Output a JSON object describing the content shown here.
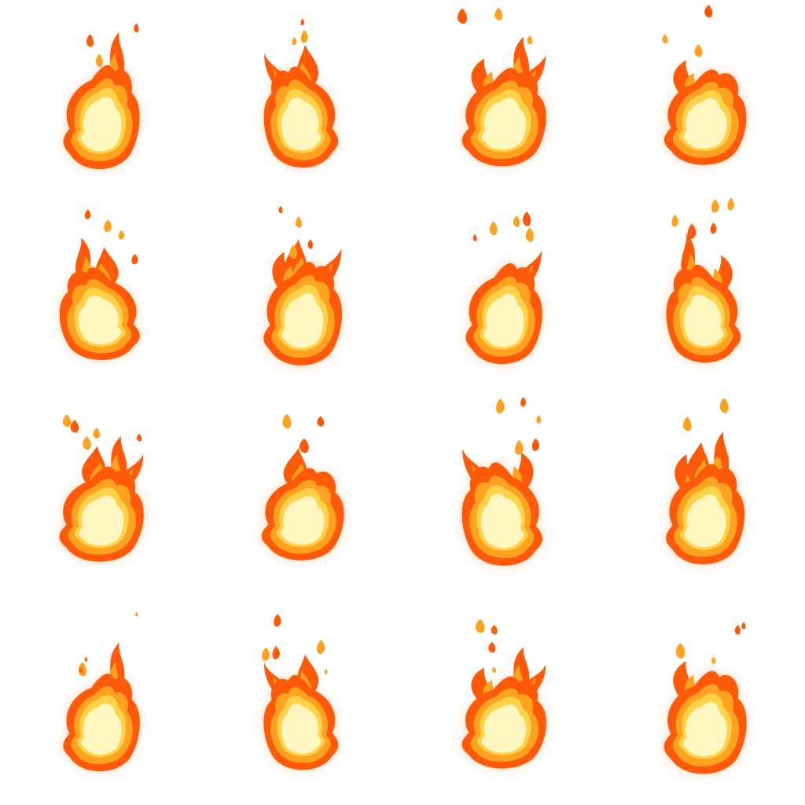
{
  "sheet": {
    "background": "#ffffff",
    "layout": "4x4 grid",
    "rows": 4,
    "columns": 4
  },
  "palette": {
    "outer_glow": "#ffd0b0",
    "outer": "#ff5a0a",
    "mid": "#ffa21f",
    "inner": "#ffd24a",
    "core": "#fff7bf"
  },
  "frames": [
    {
      "index": 1,
      "flame": "fire-frame",
      "sparks": 4
    },
    {
      "index": 2,
      "flame": "fire-frame",
      "sparks": 3
    },
    {
      "index": 3,
      "flame": "fire-frame",
      "sparks": 3
    },
    {
      "index": 4,
      "flame": "fire-frame",
      "sparks": 3
    },
    {
      "index": 5,
      "flame": "fire-frame",
      "sparks": 4
    },
    {
      "index": 6,
      "flame": "fire-frame",
      "sparks": 4
    },
    {
      "index": 7,
      "flame": "fire-frame",
      "sparks": 5
    },
    {
      "index": 8,
      "flame": "fire-frame",
      "sparks": 5
    },
    {
      "index": 9,
      "flame": "fire-frame",
      "sparks": 5
    },
    {
      "index": 10,
      "flame": "fire-frame",
      "sparks": 4
    },
    {
      "index": 11,
      "flame": "fire-frame",
      "sparks": 5
    },
    {
      "index": 12,
      "flame": "fire-frame",
      "sparks": 4
    },
    {
      "index": 13,
      "flame": "fire-frame",
      "sparks": 4
    },
    {
      "index": 14,
      "flame": "fire-frame",
      "sparks": 5
    },
    {
      "index": 15,
      "flame": "fire-frame",
      "sparks": 4
    },
    {
      "index": 16,
      "flame": "fire-frame",
      "sparks": 4
    }
  ]
}
